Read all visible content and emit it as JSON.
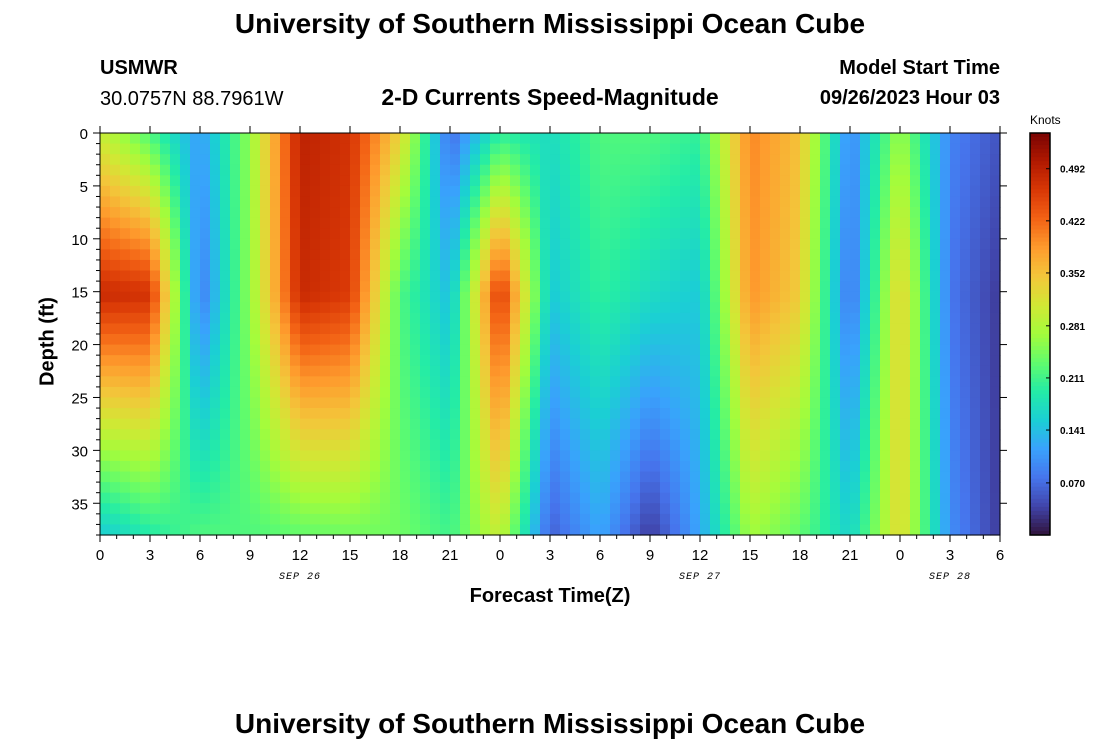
{
  "header": {
    "title_top": "University of Southern Mississippi Ocean Cube",
    "station": "USMWR",
    "coords": "30.0757N  88.7961W",
    "chart_title": "2-D Currents Speed-Magnitude",
    "model_label": "Model Start Time",
    "model_time": "09/26/2023 Hour 03",
    "title_bottom": "University of Southern Mississippi Ocean Cube"
  },
  "colors": {
    "scale": [
      "#30123b",
      "#4145ab",
      "#4675ed",
      "#39a2fc",
      "#1bcfd4",
      "#24eca6",
      "#61fc6c",
      "#a4fc3b",
      "#d1e834",
      "#f3c63a",
      "#fe9b2d",
      "#f36315",
      "#d93806",
      "#b11901",
      "#7a0402"
    ]
  },
  "chart_data": {
    "type": "heatmap",
    "title": "2-D Currents Speed-Magnitude",
    "xlabel": "Forecast Time(Z)",
    "ylabel": "Depth (ft)",
    "x_tick_labels": [
      "0",
      "3",
      "6",
      "9",
      "12",
      "15",
      "18",
      "21",
      "0",
      "3",
      "6",
      "9",
      "12",
      "15",
      "18",
      "21",
      "0",
      "3",
      "6"
    ],
    "date_labels": [
      "SEP 26",
      "SEP 27",
      "SEP 28"
    ],
    "y_tick_labels": [
      "0",
      "5",
      "10",
      "15",
      "20",
      "25",
      "30",
      "35"
    ],
    "ylim": [
      0,
      38
    ],
    "xlim_hours": [
      0,
      54
    ],
    "colorbar": {
      "unit": "Knots",
      "tick_labels": [
        "0.492",
        "0.422",
        "0.352",
        "0.281",
        "0.211",
        "0.141",
        "0.070"
      ],
      "range": [
        0.0,
        0.54
      ]
    },
    "speed_by_hour_surface_to_bottom": [
      [
        0,
        0.3,
        0.48,
        0.15
      ],
      [
        3,
        0.22,
        0.47,
        0.19
      ],
      [
        6,
        0.11,
        0.08,
        0.22
      ],
      [
        9,
        0.26,
        0.26,
        0.22
      ],
      [
        12,
        0.49,
        0.48,
        0.23
      ],
      [
        15,
        0.47,
        0.46,
        0.24
      ],
      [
        18,
        0.33,
        0.22,
        0.24
      ],
      [
        21,
        0.07,
        0.14,
        0.21
      ],
      [
        0,
        0.2,
        0.47,
        0.3
      ],
      [
        3,
        0.17,
        0.15,
        0.06
      ],
      [
        6,
        0.22,
        0.2,
        0.12
      ],
      [
        9,
        0.22,
        0.17,
        0.03
      ],
      [
        12,
        0.2,
        0.15,
        0.12
      ],
      [
        15,
        0.4,
        0.39,
        0.27
      ],
      [
        18,
        0.35,
        0.34,
        0.23
      ],
      [
        21,
        0.09,
        0.07,
        0.16
      ],
      [
        0,
        0.27,
        0.34,
        0.33
      ],
      [
        3,
        0.09,
        0.08,
        0.1
      ],
      [
        6,
        0.05,
        0.03,
        0.03
      ]
    ]
  }
}
